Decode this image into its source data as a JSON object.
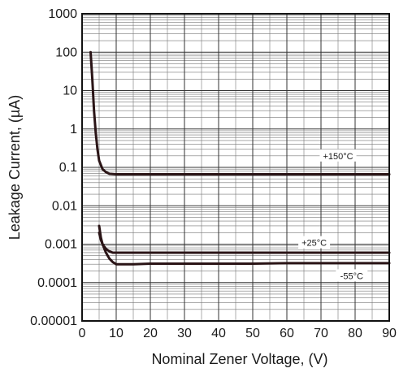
{
  "chart_data": {
    "type": "line",
    "title": "",
    "xlabel": "Nominal Zener Voltage, (V)",
    "ylabel": "Leakage Current, (µA)",
    "xlim": [
      0,
      90
    ],
    "ylim": [
      1e-05,
      1000
    ],
    "yscale": "log",
    "grid": true,
    "x_ticks": [
      0,
      10,
      20,
      30,
      40,
      50,
      60,
      70,
      80,
      90
    ],
    "y_ticks": [
      1e-05,
      0.0001,
      0.001,
      0.01,
      0.1,
      1,
      10,
      100,
      1000
    ],
    "x_tick_labels": [
      "0",
      "10",
      "20",
      "30",
      "40",
      "50",
      "60",
      "70",
      "80",
      "90"
    ],
    "y_tick_labels": [
      "0.00001",
      "0.0001",
      "0.001",
      "0.01",
      "0.1",
      "1",
      "10",
      "100",
      "1000"
    ],
    "line_color": "#2a1416",
    "series": [
      {
        "name": "+150°C",
        "label_at": [
          75,
          0.2
        ],
        "x": [
          2.5,
          3,
          3.5,
          4,
          4.5,
          5,
          6,
          7,
          8,
          10,
          15,
          20,
          30,
          40,
          50,
          60,
          70,
          80,
          90
        ],
        "y": [
          100,
          20,
          3,
          0.8,
          0.3,
          0.15,
          0.09,
          0.075,
          0.068,
          0.066,
          0.066,
          0.066,
          0.066,
          0.066,
          0.066,
          0.066,
          0.066,
          0.066,
          0.066
        ]
      },
      {
        "name": "+25°C",
        "label_at": [
          68,
          0.0011
        ],
        "x": [
          5,
          5.5,
          6,
          7,
          8,
          9,
          10,
          15,
          20,
          30,
          40,
          50,
          60,
          70,
          80,
          90
        ],
        "y": [
          0.002,
          0.0013,
          0.001,
          0.00075,
          0.00065,
          0.0006,
          0.0006,
          0.0006,
          0.0006,
          0.0006,
          0.0006,
          0.0006,
          0.0006,
          0.0006,
          0.0006,
          0.0006
        ]
      },
      {
        "name": "-55°C",
        "label_at": [
          79,
          0.00015
        ],
        "x": [
          5,
          5.5,
          6,
          7,
          8,
          9,
          10,
          12,
          15,
          20,
          30,
          40,
          50,
          60,
          70,
          80,
          90
        ],
        "y": [
          0.003,
          0.0015,
          0.001,
          0.0006,
          0.00042,
          0.00034,
          0.0003,
          0.0003,
          0.0003,
          0.00031,
          0.00031,
          0.00031,
          0.00031,
          0.00032,
          0.00032,
          0.00032,
          0.00032
        ]
      }
    ]
  }
}
